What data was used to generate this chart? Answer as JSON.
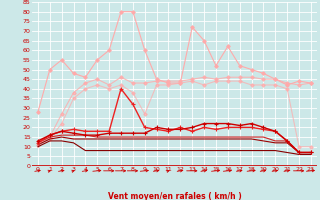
{
  "xlabel": "Vent moyen/en rafales ( km/h )",
  "bg_color": "#cce8e8",
  "grid_color": "#b0d0d0",
  "text_color": "#cc0000",
  "xlim": [
    -0.5,
    23.5
  ],
  "ylim": [
    0,
    85
  ],
  "yticks": [
    0,
    5,
    10,
    15,
    20,
    25,
    30,
    35,
    40,
    45,
    50,
    55,
    60,
    65,
    70,
    75,
    80,
    85
  ],
  "xticks": [
    0,
    1,
    2,
    3,
    4,
    5,
    6,
    7,
    8,
    9,
    10,
    11,
    12,
    13,
    14,
    15,
    16,
    17,
    18,
    19,
    20,
    21,
    22,
    23
  ],
  "x": [
    0,
    1,
    2,
    3,
    4,
    5,
    6,
    7,
    8,
    9,
    10,
    11,
    12,
    13,
    14,
    15,
    16,
    17,
    18,
    19,
    20,
    21,
    22,
    23
  ],
  "lines": [
    {
      "y": [
        28,
        50,
        55,
        48,
        46,
        55,
        60,
        80,
        80,
        60,
        45,
        43,
        43,
        72,
        65,
        52,
        62,
        52,
        50,
        48,
        45,
        42,
        44,
        43
      ],
      "color": "#ffaaaa",
      "lw": 0.8,
      "marker": "D",
      "ms": 1.8,
      "alpha": 1.0,
      "zorder": 2
    },
    {
      "y": [
        11,
        15,
        27,
        38,
        43,
        45,
        42,
        46,
        43,
        43,
        44,
        44,
        44,
        45,
        46,
        45,
        46,
        46,
        46,
        45,
        45,
        43,
        42,
        43
      ],
      "color": "#ffaaaa",
      "lw": 0.8,
      "marker": "D",
      "ms": 1.8,
      "alpha": 0.8,
      "zorder": 2
    },
    {
      "y": [
        11,
        14,
        22,
        35,
        40,
        42,
        40,
        42,
        38,
        27,
        42,
        42,
        43,
        44,
        42,
        44,
        44,
        44,
        42,
        42,
        42,
        40,
        10,
        10
      ],
      "color": "#ffaaaa",
      "lw": 0.8,
      "marker": "D",
      "ms": 1.8,
      "alpha": 0.7,
      "zorder": 2
    },
    {
      "y": [
        12,
        16,
        18,
        19,
        18,
        18,
        18,
        40,
        32,
        20,
        19,
        18,
        20,
        18,
        20,
        19,
        20,
        20,
        20,
        19,
        18,
        13,
        7,
        7
      ],
      "color": "#ee2222",
      "lw": 1.0,
      "marker": "+",
      "ms": 3.0,
      "alpha": 1.0,
      "zorder": 4
    },
    {
      "y": [
        13,
        16,
        18,
        17,
        16,
        16,
        17,
        17,
        17,
        17,
        20,
        19,
        19,
        20,
        22,
        22,
        22,
        21,
        22,
        20,
        18,
        13,
        7,
        7
      ],
      "color": "#cc0000",
      "lw": 1.0,
      "marker": "+",
      "ms": 3.0,
      "alpha": 1.0,
      "zorder": 4
    },
    {
      "y": [
        12,
        15,
        16,
        16,
        16,
        15,
        15,
        15,
        15,
        15,
        15,
        15,
        15,
        15,
        15,
        15,
        15,
        15,
        15,
        15,
        13,
        13,
        7,
        7
      ],
      "color": "#cc2222",
      "lw": 0.8,
      "marker": null,
      "ms": 0,
      "alpha": 1.0,
      "zorder": 3
    },
    {
      "y": [
        11,
        14,
        15,
        14,
        14,
        14,
        14,
        14,
        14,
        14,
        14,
        14,
        14,
        14,
        14,
        14,
        14,
        14,
        14,
        13,
        12,
        12,
        7,
        7
      ],
      "color": "#990000",
      "lw": 0.8,
      "marker": null,
      "ms": 0,
      "alpha": 1.0,
      "zorder": 3
    },
    {
      "y": [
        10,
        13,
        13,
        12,
        8,
        8,
        8,
        8,
        8,
        8,
        8,
        8,
        8,
        8,
        8,
        8,
        8,
        8,
        8,
        8,
        8,
        7,
        6,
        6
      ],
      "color": "#880000",
      "lw": 0.8,
      "marker": null,
      "ms": 0,
      "alpha": 1.0,
      "zorder": 3
    }
  ],
  "arrow_angles": [
    225,
    210,
    225,
    210,
    225,
    240,
    270,
    270,
    270,
    240,
    225,
    210,
    225,
    270,
    225,
    240,
    240,
    225,
    240,
    225,
    225,
    225,
    270,
    240
  ]
}
